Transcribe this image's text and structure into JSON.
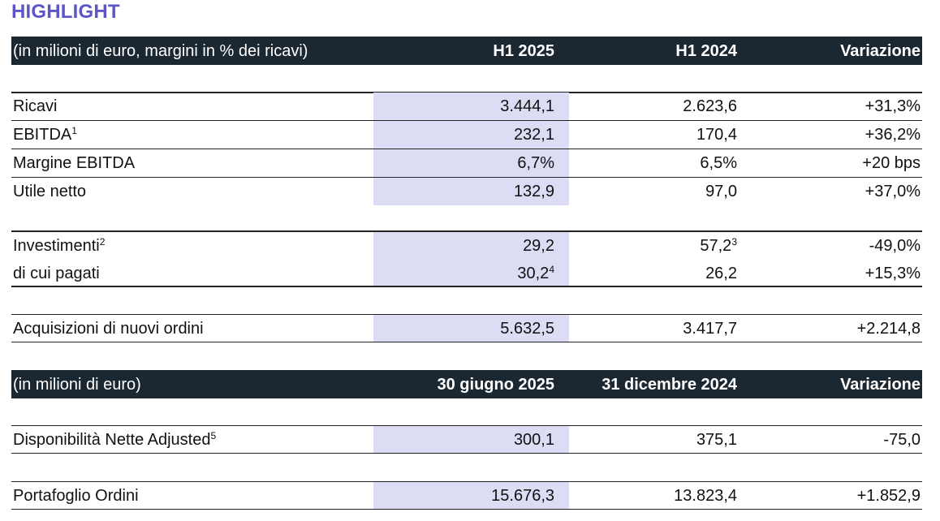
{
  "title": "HIGHLIGHT",
  "table1": {
    "header": {
      "label": "(in milioni di euro, margini in % dei ricavi)",
      "col1": "H1 2025",
      "col2": "H1 2024",
      "col3": "Variazione"
    },
    "rows": [
      {
        "label": "Ricavi",
        "sup": "",
        "h1_2025": "3.444,1",
        "h1_2025_sup": "",
        "h1_2024": "2.623,6",
        "h1_2024_sup": "",
        "change": "+31,3%"
      },
      {
        "label": "EBITDA",
        "sup": "1",
        "h1_2025": "232,1",
        "h1_2025_sup": "",
        "h1_2024": "170,4",
        "h1_2024_sup": "",
        "change": "+36,2%"
      },
      {
        "label": "Margine EBITDA",
        "sup": "",
        "h1_2025": "6,7%",
        "h1_2025_sup": "",
        "h1_2024": "6,5%",
        "h1_2024_sup": "",
        "change": "+20 bps"
      },
      {
        "label": "Utile netto",
        "sup": "",
        "h1_2025": "132,9",
        "h1_2025_sup": "",
        "h1_2024": "97,0",
        "h1_2024_sup": "",
        "change": "+37,0%"
      },
      {
        "label": "Investimenti",
        "sup": "2",
        "h1_2025": "29,2",
        "h1_2025_sup": "",
        "h1_2024": "57,2",
        "h1_2024_sup": "3",
        "change": "-49,0%"
      },
      {
        "label": "di cui pagati",
        "sup": "",
        "h1_2025": "30,2",
        "h1_2025_sup": "4",
        "h1_2024": "26,2",
        "h1_2024_sup": "",
        "change": "+15,3%"
      },
      {
        "label": "Acquisizioni di nuovi ordini",
        "sup": "",
        "h1_2025": "5.632,5",
        "h1_2025_sup": "",
        "h1_2024": "3.417,7",
        "h1_2024_sup": "",
        "change": "+2.214,8"
      }
    ]
  },
  "table2": {
    "header": {
      "label": "(in milioni di euro)",
      "col1": "30 giugno 2025",
      "col2": "31 dicembre 2024",
      "col3": "Variazione"
    },
    "rows": [
      {
        "label": "Disponibilità Nette Adjusted",
        "sup": "5",
        "jun_2025": "300,1",
        "dec_2024": "375,1",
        "change": "-75,0"
      },
      {
        "label": "Portafoglio Ordini",
        "sup": "",
        "jun_2025": "15.676,3",
        "dec_2024": "13.823,4",
        "change": "+1.852,9"
      }
    ]
  }
}
